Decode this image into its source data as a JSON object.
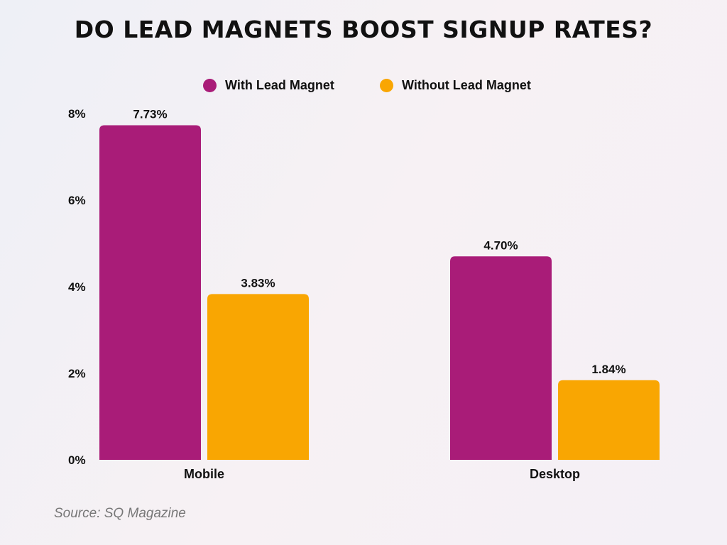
{
  "chart_data": {
    "type": "bar",
    "title": "DO LEAD MAGNETS BOOST SIGNUP RATES?",
    "categories": [
      "Mobile",
      "Desktop"
    ],
    "series": [
      {
        "name": "With Lead Magnet",
        "values": [
          7.73,
          4.7
        ],
        "labels": [
          "7.73%",
          "4.70%"
        ],
        "color": "#A91C78"
      },
      {
        "name": "Without Lead Magnet",
        "values": [
          3.83,
          1.84
        ],
        "labels": [
          "3.83%",
          "1.84%"
        ],
        "color": "#F9A602"
      }
    ],
    "yticks": [
      "0%",
      "2%",
      "4%",
      "6%",
      "8%"
    ],
    "ytick_values": [
      0,
      2,
      4,
      6,
      8
    ],
    "ylim": [
      0,
      8
    ],
    "grid": false,
    "legend_position": "top-center",
    "source": "Source: SQ Magazine"
  }
}
